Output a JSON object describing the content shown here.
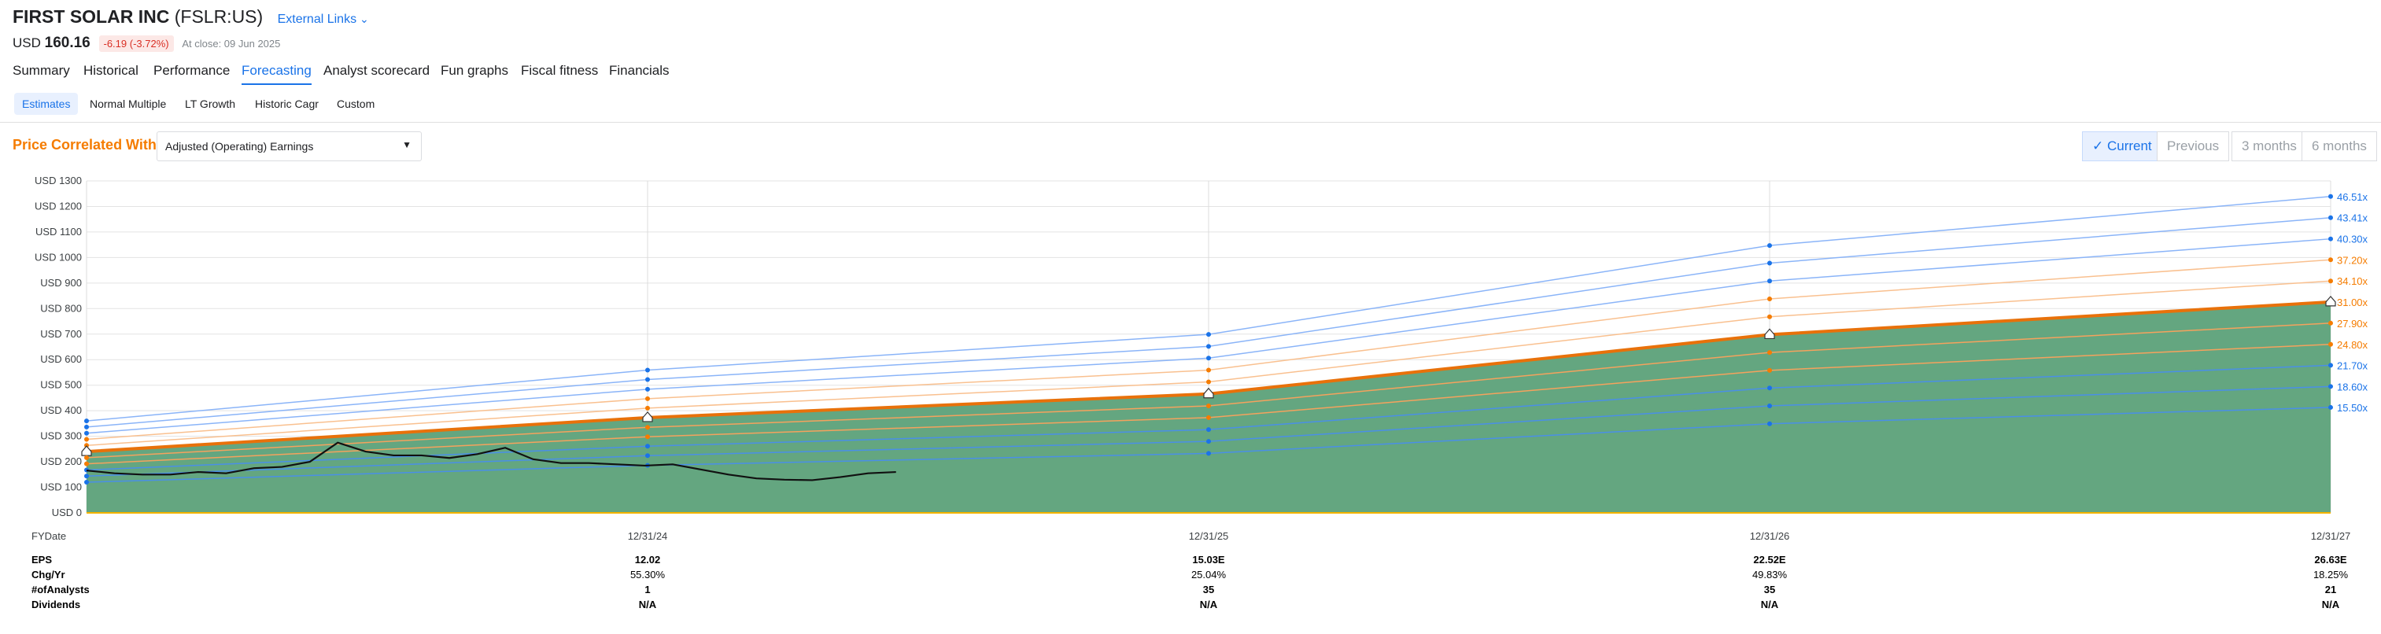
{
  "header": {
    "company": "FIRST SOLAR INC",
    "ticker": "(FSLR:US)",
    "external_links": "External Links",
    "currency": "USD",
    "price": "160.16",
    "change": "-6.19 (-3.72%)",
    "close": "At close: 09 Jun 2025"
  },
  "tabs": [
    "Summary",
    "Historical",
    "Performance",
    "Forecasting",
    "Analyst scorecard",
    "Fun graphs",
    "Fiscal fitness",
    "Financials"
  ],
  "subtabs": [
    "Estimates",
    "Normal Multiple",
    "LT Growth",
    "Historic Cagr",
    "Custom"
  ],
  "correlation": {
    "label": "Price Correlated With",
    "selected": "Adjusted (Operating) Earnings"
  },
  "periods": [
    "Current",
    "Previous",
    "3 months",
    "6 months"
  ],
  "chart_data": {
    "type": "line",
    "x": [
      null,
      "12/31/24",
      "12/31/25",
      "12/31/26",
      "12/31/27"
    ],
    "ylim": [
      0,
      1300
    ],
    "yticks": [
      {
        "value": 0,
        "label": "USD 0"
      },
      {
        "value": 100,
        "label": "USD 100"
      },
      {
        "value": 200,
        "label": "USD 200"
      },
      {
        "value": 300,
        "label": "USD 300"
      },
      {
        "value": 400,
        "label": "USD 400"
      },
      {
        "value": 500,
        "label": "USD 500"
      },
      {
        "value": 600,
        "label": "USD 600"
      },
      {
        "value": 700,
        "label": "USD 700"
      },
      {
        "value": 800,
        "label": "USD 800"
      },
      {
        "value": 900,
        "label": "USD 900"
      },
      {
        "value": 1000,
        "label": "USD 1000"
      },
      {
        "value": 1100,
        "label": "USD 1100"
      },
      {
        "value": 1200,
        "label": "USD 1200"
      },
      {
        "value": 1300,
        "label": "USD 1300"
      }
    ],
    "grid": true,
    "series": [
      {
        "name": "46.51x",
        "color": "#8ab4f8",
        "label_color": "#1a73e8",
        "values": [
          360,
          559,
          699,
          1047,
          1239
        ]
      },
      {
        "name": "43.41x",
        "color": "#8ab4f8",
        "label_color": "#1a73e8",
        "values": [
          336,
          522,
          652,
          978,
          1156
        ]
      },
      {
        "name": "40.30x",
        "color": "#8ab4f8",
        "label_color": "#1a73e8",
        "values": [
          312,
          484,
          606,
          908,
          1073
        ]
      },
      {
        "name": "37.20x",
        "color": "#f9c08f",
        "label_color": "#f57c00",
        "values": [
          288,
          447,
          559,
          838,
          991
        ]
      },
      {
        "name": "34.10x",
        "color": "#f9c08f",
        "label_color": "#f57c00",
        "values": [
          264,
          410,
          513,
          768,
          908
        ]
      },
      {
        "name": "31.00x",
        "color": "#e8710a",
        "label_color": "#f57c00",
        "fill": "#64a680",
        "values": [
          240,
          373,
          466,
          698,
          826
        ]
      },
      {
        "name": "27.90x",
        "color": "#f5a25d",
        "label_color": "#f57c00",
        "values": [
          216,
          335,
          419,
          628,
          743
        ]
      },
      {
        "name": "24.80x",
        "color": "#f5a25d",
        "label_color": "#f57c00",
        "values": [
          192,
          298,
          373,
          558,
          660
        ]
      },
      {
        "name": "21.70x",
        "color": "#4a8fe7",
        "label_color": "#1a73e8",
        "values": [
          168,
          261,
          326,
          489,
          578
        ]
      },
      {
        "name": "18.60x",
        "color": "#4a8fe7",
        "label_color": "#1a73e8",
        "values": [
          144,
          224,
          280,
          419,
          495
        ]
      },
      {
        "name": "15.50x",
        "color": "#4a8fe7",
        "label_color": "#1a73e8",
        "values": [
          120,
          186,
          233,
          349,
          413
        ]
      }
    ],
    "price": {
      "color": "#111111",
      "values": [
        166,
        155,
        150,
        150,
        160,
        155,
        175,
        180,
        200,
        275,
        240,
        225,
        225,
        215,
        230,
        255,
        210,
        195,
        195,
        190,
        185,
        190,
        170,
        150,
        135,
        130,
        128,
        140,
        155,
        160
      ]
    }
  },
  "table": {
    "header": "FYDate",
    "rows": [
      {
        "label": "EPS",
        "cells": [
          "12.02",
          "15.03E",
          "22.52E",
          "26.63E"
        ]
      },
      {
        "label": "Chg/Yr",
        "cells": [
          "55.30%",
          "25.04%",
          "49.83%",
          "18.25%"
        ]
      },
      {
        "label": "#ofAnalysts",
        "cells": [
          1,
          35,
          35,
          21
        ]
      },
      {
        "label": "Dividends",
        "cells": [
          "N/A",
          "N/A",
          "N/A",
          "N/A"
        ]
      }
    ]
  }
}
